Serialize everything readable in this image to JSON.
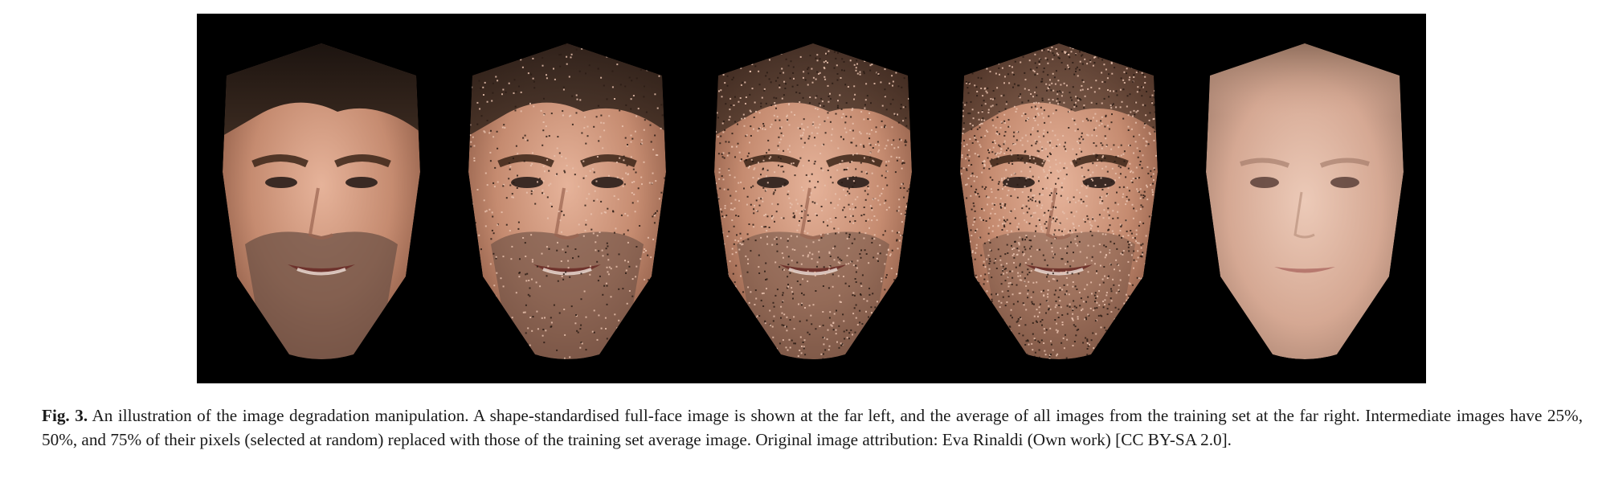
{
  "figure": {
    "panels": [
      {
        "name": "original",
        "replaced_pct": 0
      },
      {
        "name": "degraded-25",
        "replaced_pct": 25
      },
      {
        "name": "degraded-50",
        "replaced_pct": 50
      },
      {
        "name": "degraded-75",
        "replaced_pct": 75
      },
      {
        "name": "training-average",
        "replaced_pct": 100
      }
    ],
    "colors": {
      "background": "#000000",
      "skin_original": "#c58b70",
      "skin_average": "#d5a893",
      "hair": "#2a1e17",
      "beard": "#6e5245"
    }
  },
  "caption": {
    "label": "Fig. 3.",
    "text": " An illustration of the image degradation manipulation. A shape-standardised full-face image is shown at the far left, and the average of all images from the training set at the far right. Intermediate images have 25%, 50%, and 75% of their pixels (selected at random) replaced with those of the training set average image. Original image attribution: Eva Rinaldi (Own work) [CC BY-SA 2.0]."
  }
}
